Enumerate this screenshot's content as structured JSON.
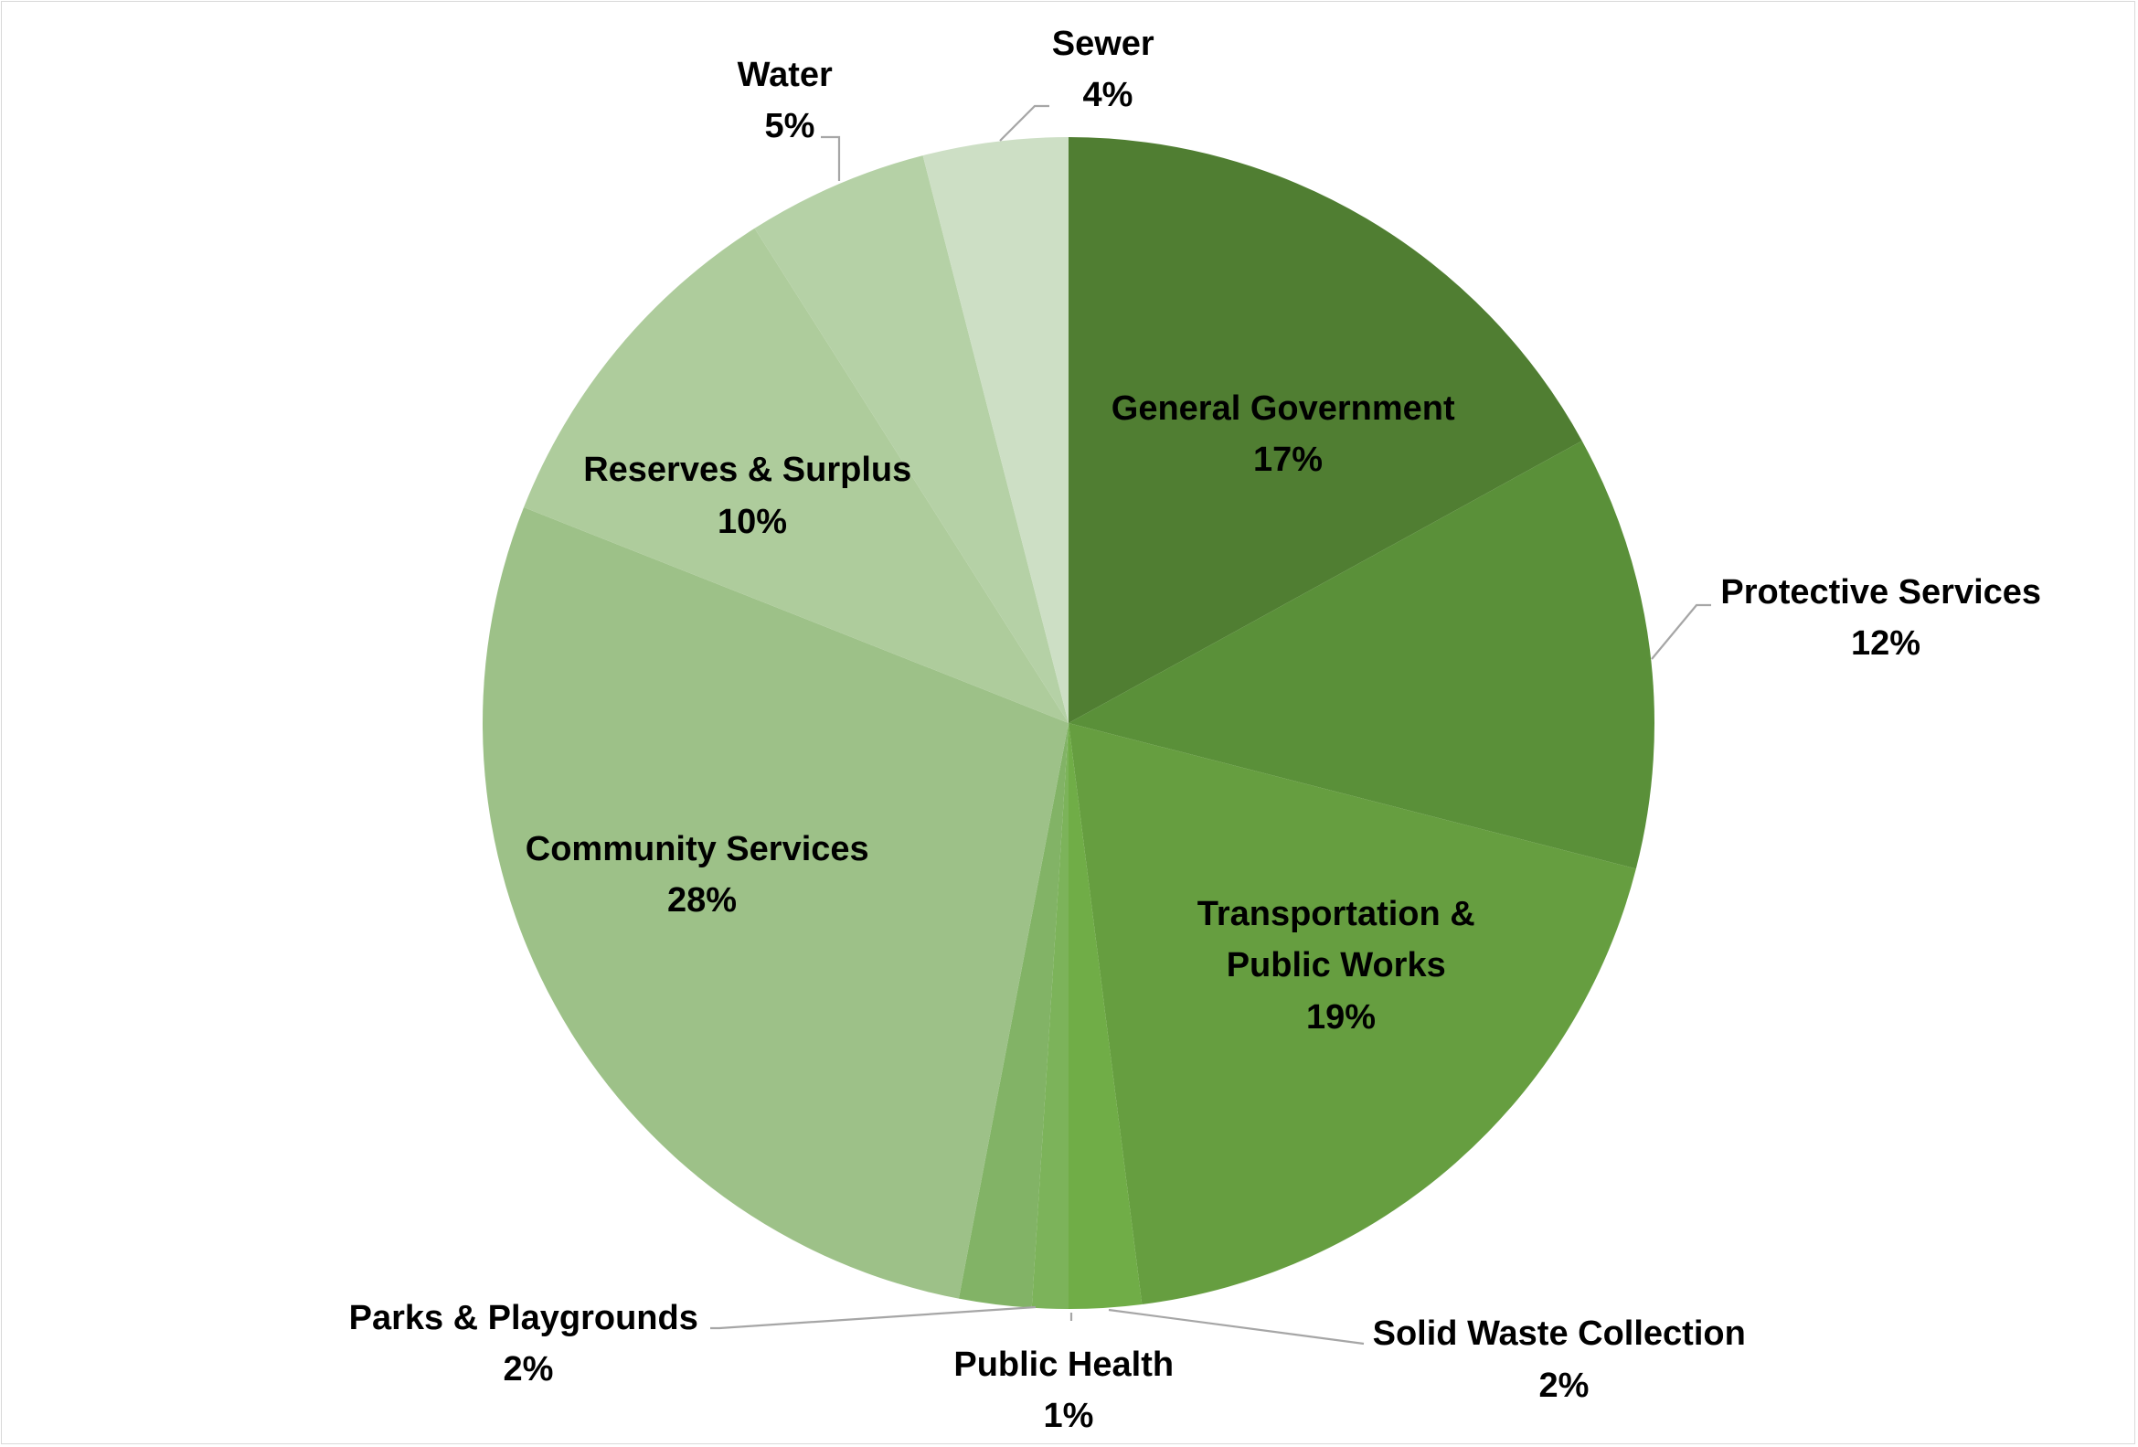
{
  "chart_data": {
    "type": "pie",
    "title": "",
    "start_angle_deg": 0,
    "direction": "clockwise",
    "slices": [
      {
        "label": "General Government",
        "value": 17,
        "display": "17%",
        "color": "#507E32"
      },
      {
        "label": "Protective Services",
        "value": 12,
        "display": "12%",
        "color": "#5A9039"
      },
      {
        "label": "Transportation & Public Works",
        "value": 19,
        "display": "19%",
        "color": "#669E40"
      },
      {
        "label": "Solid Waste Collection",
        "value": 2,
        "display": "2%",
        "color": "#70AD47"
      },
      {
        "label": "Public Health",
        "value": 1,
        "display": "1%",
        "color": "#7CB35A"
      },
      {
        "label": "Parks & Playgrounds",
        "value": 2,
        "display": "2%",
        "color": "#82B366"
      },
      {
        "label": "Community Services",
        "value": 28,
        "display": "28%",
        "color": "#9DC188"
      },
      {
        "label": "Reserves & Surplus",
        "value": 10,
        "display": "10%",
        "color": "#AECC9C"
      },
      {
        "label": "Water",
        "value": 5,
        "display": "5%",
        "color": "#B5D1A6"
      },
      {
        "label": "Sewer",
        "value": 4,
        "display": "4%",
        "color": "#CDDFC5"
      }
    ],
    "data_labels": "category name and percentage"
  }
}
